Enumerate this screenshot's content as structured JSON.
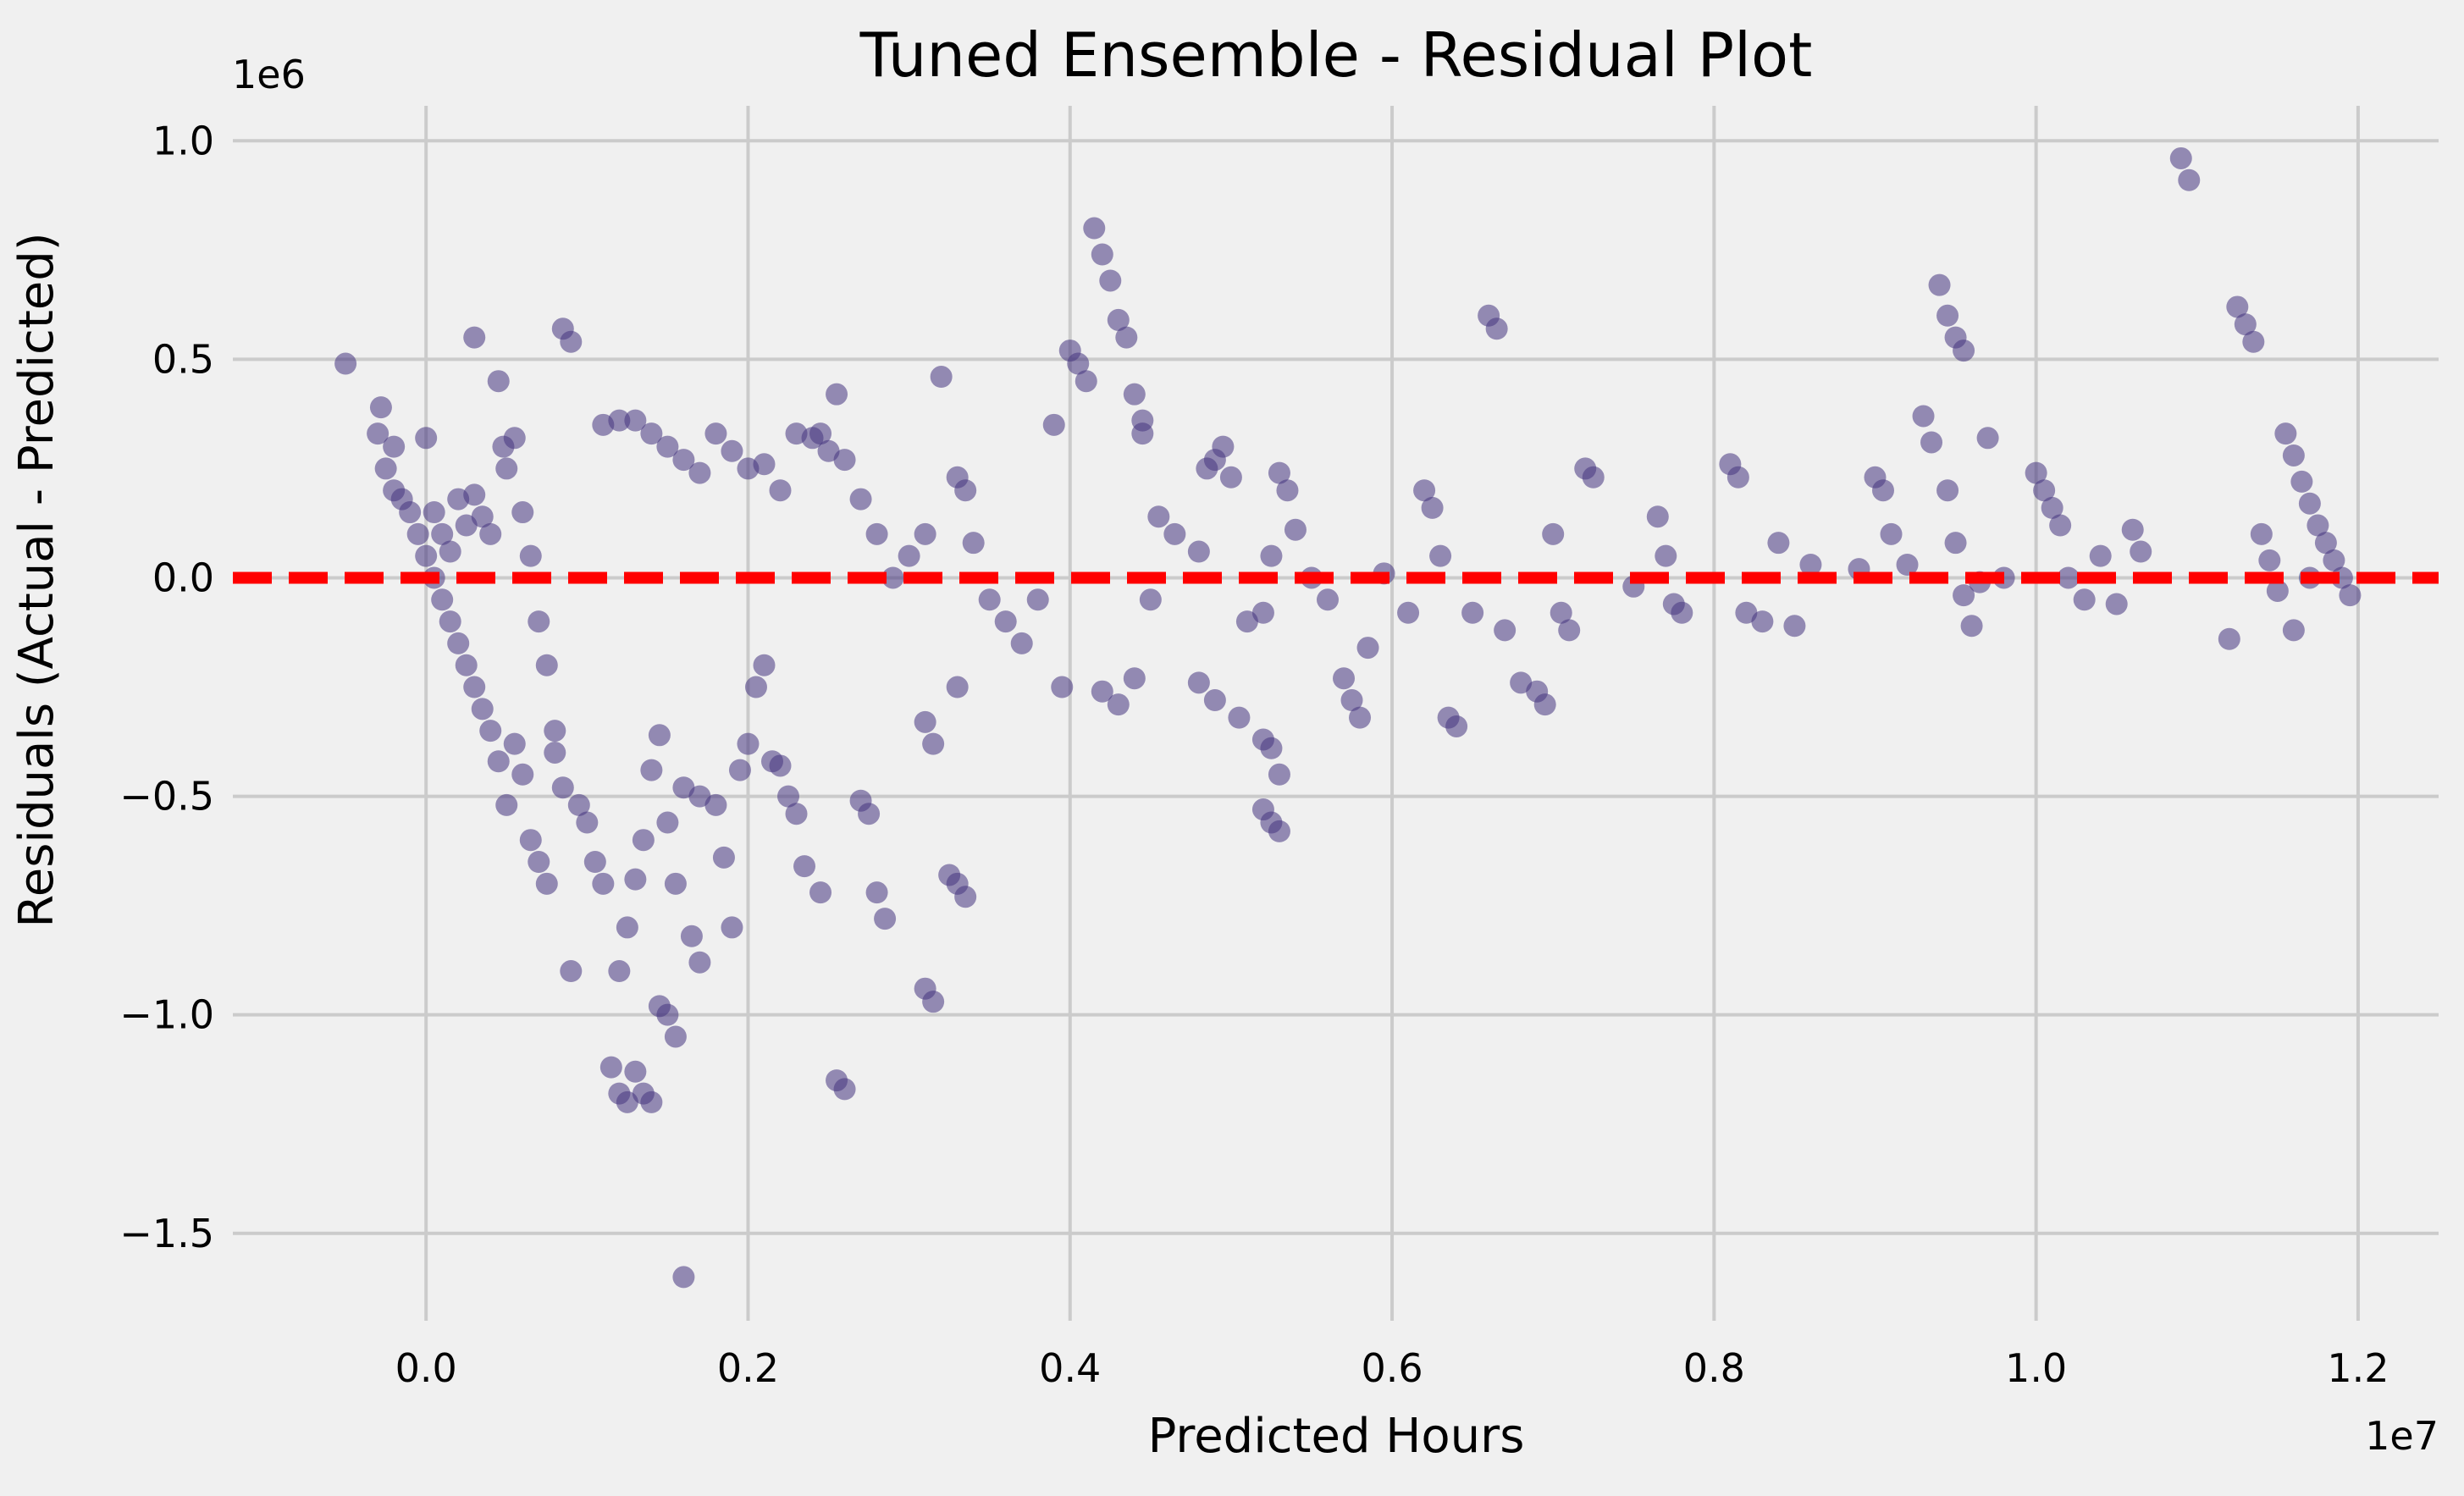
{
  "chart_data": {
    "type": "scatter",
    "title": "Tuned Ensemble - Residual Plot",
    "xlabel": "Predicted Hours",
    "ylabel": "Residuals (Actual - Predicted)",
    "x_offset_label": "1e7",
    "y_offset_label": "1e6",
    "xlim": [
      -1200000,
      12500000
    ],
    "ylim": [
      -1700000,
      1080000
    ],
    "x_ticks": [
      0,
      2000000,
      4000000,
      6000000,
      8000000,
      10000000,
      12000000
    ],
    "x_tick_labels": [
      "0.0",
      "0.2",
      "0.4",
      "0.6",
      "0.8",
      "1.0",
      "1.2"
    ],
    "y_ticks": [
      -1500000,
      -1000000,
      -500000,
      0,
      500000,
      1000000
    ],
    "y_tick_labels": [
      "−1.5",
      "−1.0",
      "−0.5",
      "0.0",
      "0.5",
      "1.0"
    ],
    "grid": true,
    "reference_line": {
      "y": 0,
      "color": "#ff0000",
      "style": "dashed"
    },
    "point_color": "#463480",
    "series": [
      {
        "points": [
          [
            -500000,
            490000
          ],
          [
            -300000,
            330000
          ],
          [
            -280000,
            390000
          ],
          [
            -250000,
            250000
          ],
          [
            -200000,
            300000
          ],
          [
            -200000,
            200000
          ],
          [
            -150000,
            180000
          ],
          [
            -100000,
            150000
          ],
          [
            -50000,
            100000
          ],
          [
            0,
            50000
          ],
          [
            50000,
            0
          ],
          [
            100000,
            -50000
          ],
          [
            150000,
            -100000
          ],
          [
            200000,
            -150000
          ],
          [
            250000,
            -200000
          ],
          [
            300000,
            -250000
          ],
          [
            350000,
            -300000
          ],
          [
            0,
            320000
          ],
          [
            50000,
            150000
          ],
          [
            100000,
            100000
          ],
          [
            150000,
            60000
          ],
          [
            200000,
            180000
          ],
          [
            250000,
            120000
          ],
          [
            300000,
            190000
          ],
          [
            350000,
            140000
          ],
          [
            400000,
            100000
          ],
          [
            450000,
            450000
          ],
          [
            480000,
            300000
          ],
          [
            500000,
            250000
          ],
          [
            550000,
            320000
          ],
          [
            600000,
            150000
          ],
          [
            650000,
            50000
          ],
          [
            700000,
            -100000
          ],
          [
            750000,
            -200000
          ],
          [
            800000,
            -350000
          ],
          [
            300000,
            550000
          ],
          [
            850000,
            570000
          ],
          [
            900000,
            540000
          ],
          [
            400000,
            -350000
          ],
          [
            450000,
            -420000
          ],
          [
            500000,
            -520000
          ],
          [
            550000,
            -380000
          ],
          [
            600000,
            -450000
          ],
          [
            650000,
            -600000
          ],
          [
            700000,
            -650000
          ],
          [
            750000,
            -700000
          ],
          [
            800000,
            -400000
          ],
          [
            850000,
            -480000
          ],
          [
            900000,
            -900000
          ],
          [
            950000,
            -520000
          ],
          [
            1000000,
            -560000
          ],
          [
            1050000,
            -650000
          ],
          [
            1100000,
            -700000
          ],
          [
            1150000,
            -1120000
          ],
          [
            1200000,
            -1180000
          ],
          [
            1250000,
            -1200000
          ],
          [
            1300000,
            -1130000
          ],
          [
            1350000,
            -1180000
          ],
          [
            1400000,
            -1200000
          ],
          [
            1450000,
            -980000
          ],
          [
            1500000,
            -1000000
          ],
          [
            1550000,
            -1050000
          ],
          [
            1600000,
            -1600000
          ],
          [
            1650000,
            -820000
          ],
          [
            1700000,
            -880000
          ],
          [
            1200000,
            -900000
          ],
          [
            1250000,
            -800000
          ],
          [
            1300000,
            -690000
          ],
          [
            1350000,
            -600000
          ],
          [
            1400000,
            -440000
          ],
          [
            1450000,
            -360000
          ],
          [
            1500000,
            -560000
          ],
          [
            1550000,
            -700000
          ],
          [
            1600000,
            -480000
          ],
          [
            1700000,
            -500000
          ],
          [
            1800000,
            -520000
          ],
          [
            1850000,
            -640000
          ],
          [
            1900000,
            -800000
          ],
          [
            1950000,
            -440000
          ],
          [
            2000000,
            -380000
          ],
          [
            2050000,
            -250000
          ],
          [
            2100000,
            -200000
          ],
          [
            2150000,
            -420000
          ],
          [
            2200000,
            -430000
          ],
          [
            2250000,
            -500000
          ],
          [
            2300000,
            -540000
          ],
          [
            2350000,
            -660000
          ],
          [
            2450000,
            -720000
          ],
          [
            2550000,
            -1150000
          ],
          [
            2600000,
            -1170000
          ],
          [
            2700000,
            -510000
          ],
          [
            2750000,
            -540000
          ],
          [
            2800000,
            -720000
          ],
          [
            2850000,
            -780000
          ],
          [
            3100000,
            -940000
          ],
          [
            3150000,
            -970000
          ],
          [
            3250000,
            -680000
          ],
          [
            3300000,
            -700000
          ],
          [
            3350000,
            -730000
          ],
          [
            3100000,
            -330000
          ],
          [
            3150000,
            -380000
          ],
          [
            3300000,
            -250000
          ],
          [
            1100000,
            350000
          ],
          [
            1200000,
            360000
          ],
          [
            1300000,
            360000
          ],
          [
            1400000,
            330000
          ],
          [
            1500000,
            300000
          ],
          [
            1600000,
            270000
          ],
          [
            1700000,
            240000
          ],
          [
            1800000,
            330000
          ],
          [
            1900000,
            290000
          ],
          [
            2000000,
            250000
          ],
          [
            2100000,
            260000
          ],
          [
            2200000,
            200000
          ],
          [
            2300000,
            330000
          ],
          [
            2400000,
            320000
          ],
          [
            2450000,
            330000
          ],
          [
            2500000,
            290000
          ],
          [
            2550000,
            420000
          ],
          [
            2600000,
            270000
          ],
          [
            2700000,
            180000
          ],
          [
            2800000,
            100000
          ],
          [
            2900000,
            0
          ],
          [
            3000000,
            50000
          ],
          [
            3100000,
            100000
          ],
          [
            3200000,
            460000
          ],
          [
            3300000,
            230000
          ],
          [
            3350000,
            200000
          ],
          [
            3400000,
            80000
          ],
          [
            3500000,
            -50000
          ],
          [
            3600000,
            -100000
          ],
          [
            3700000,
            -150000
          ],
          [
            3800000,
            -50000
          ],
          [
            3900000,
            350000
          ],
          [
            3950000,
            -250000
          ],
          [
            4000000,
            520000
          ],
          [
            4050000,
            490000
          ],
          [
            4100000,
            450000
          ],
          [
            4150000,
            800000
          ],
          [
            4200000,
            740000
          ],
          [
            4250000,
            680000
          ],
          [
            4300000,
            590000
          ],
          [
            4350000,
            550000
          ],
          [
            4400000,
            420000
          ],
          [
            4450000,
            360000
          ],
          [
            4450000,
            330000
          ],
          [
            4200000,
            -260000
          ],
          [
            4300000,
            -290000
          ],
          [
            4400000,
            -230000
          ],
          [
            4500000,
            -50000
          ],
          [
            4550000,
            140000
          ],
          [
            4650000,
            100000
          ],
          [
            4800000,
            60000
          ],
          [
            4850000,
            250000
          ],
          [
            4900000,
            270000
          ],
          [
            4950000,
            300000
          ],
          [
            5000000,
            230000
          ],
          [
            4800000,
            -240000
          ],
          [
            4900000,
            -280000
          ],
          [
            5050000,
            -320000
          ],
          [
            5100000,
            -100000
          ],
          [
            5200000,
            -80000
          ],
          [
            5250000,
            50000
          ],
          [
            5300000,
            240000
          ],
          [
            5350000,
            200000
          ],
          [
            5400000,
            110000
          ],
          [
            5200000,
            -370000
          ],
          [
            5250000,
            -390000
          ],
          [
            5300000,
            -450000
          ],
          [
            5200000,
            -530000
          ],
          [
            5250000,
            -560000
          ],
          [
            5300000,
            -580000
          ],
          [
            5500000,
            0
          ],
          [
            5600000,
            -50000
          ],
          [
            5700000,
            -230000
          ],
          [
            5750000,
            -280000
          ],
          [
            5800000,
            -320000
          ],
          [
            5850000,
            -160000
          ],
          [
            5950000,
            10000
          ],
          [
            6100000,
            -80000
          ],
          [
            6200000,
            200000
          ],
          [
            6250000,
            160000
          ],
          [
            6300000,
            50000
          ],
          [
            6350000,
            -320000
          ],
          [
            6400000,
            -340000
          ],
          [
            6500000,
            -80000
          ],
          [
            6600000,
            600000
          ],
          [
            6650000,
            570000
          ],
          [
            6700000,
            -120000
          ],
          [
            6800000,
            -240000
          ],
          [
            6900000,
            -260000
          ],
          [
            6950000,
            -290000
          ],
          [
            7000000,
            100000
          ],
          [
            7050000,
            -80000
          ],
          [
            7100000,
            -120000
          ],
          [
            7200000,
            250000
          ],
          [
            7250000,
            230000
          ],
          [
            7500000,
            -20000
          ],
          [
            7650000,
            140000
          ],
          [
            7700000,
            50000
          ],
          [
            7750000,
            -60000
          ],
          [
            7800000,
            -80000
          ],
          [
            8100000,
            260000
          ],
          [
            8150000,
            230000
          ],
          [
            8200000,
            -80000
          ],
          [
            8300000,
            -100000
          ],
          [
            8400000,
            80000
          ],
          [
            8500000,
            -110000
          ],
          [
            8600000,
            30000
          ],
          [
            8900000,
            20000
          ],
          [
            9000000,
            230000
          ],
          [
            9050000,
            200000
          ],
          [
            9100000,
            100000
          ],
          [
            9200000,
            30000
          ],
          [
            9300000,
            370000
          ],
          [
            9350000,
            310000
          ],
          [
            9400000,
            670000
          ],
          [
            9450000,
            600000
          ],
          [
            9500000,
            550000
          ],
          [
            9550000,
            520000
          ],
          [
            9450000,
            200000
          ],
          [
            9500000,
            80000
          ],
          [
            9550000,
            -40000
          ],
          [
            9600000,
            -110000
          ],
          [
            9650000,
            -10000
          ],
          [
            9700000,
            320000
          ],
          [
            9800000,
            0
          ],
          [
            10000000,
            240000
          ],
          [
            10050000,
            200000
          ],
          [
            10100000,
            160000
          ],
          [
            10150000,
            120000
          ],
          [
            10200000,
            0
          ],
          [
            10300000,
            -50000
          ],
          [
            10400000,
            50000
          ],
          [
            10500000,
            -60000
          ],
          [
            10600000,
            110000
          ],
          [
            10650000,
            60000
          ],
          [
            10900000,
            960000
          ],
          [
            10950000,
            910000
          ],
          [
            11200000,
            -140000
          ],
          [
            11250000,
            620000
          ],
          [
            11300000,
            580000
          ],
          [
            11350000,
            540000
          ],
          [
            11400000,
            100000
          ],
          [
            11450000,
            40000
          ],
          [
            11500000,
            -30000
          ],
          [
            11550000,
            330000
          ],
          [
            11600000,
            280000
          ],
          [
            11650000,
            220000
          ],
          [
            11700000,
            170000
          ],
          [
            11750000,
            120000
          ],
          [
            11800000,
            80000
          ],
          [
            11850000,
            40000
          ],
          [
            11900000,
            0
          ],
          [
            11950000,
            -40000
          ],
          [
            11600000,
            -120000
          ],
          [
            11700000,
            0
          ]
        ]
      }
    ]
  }
}
